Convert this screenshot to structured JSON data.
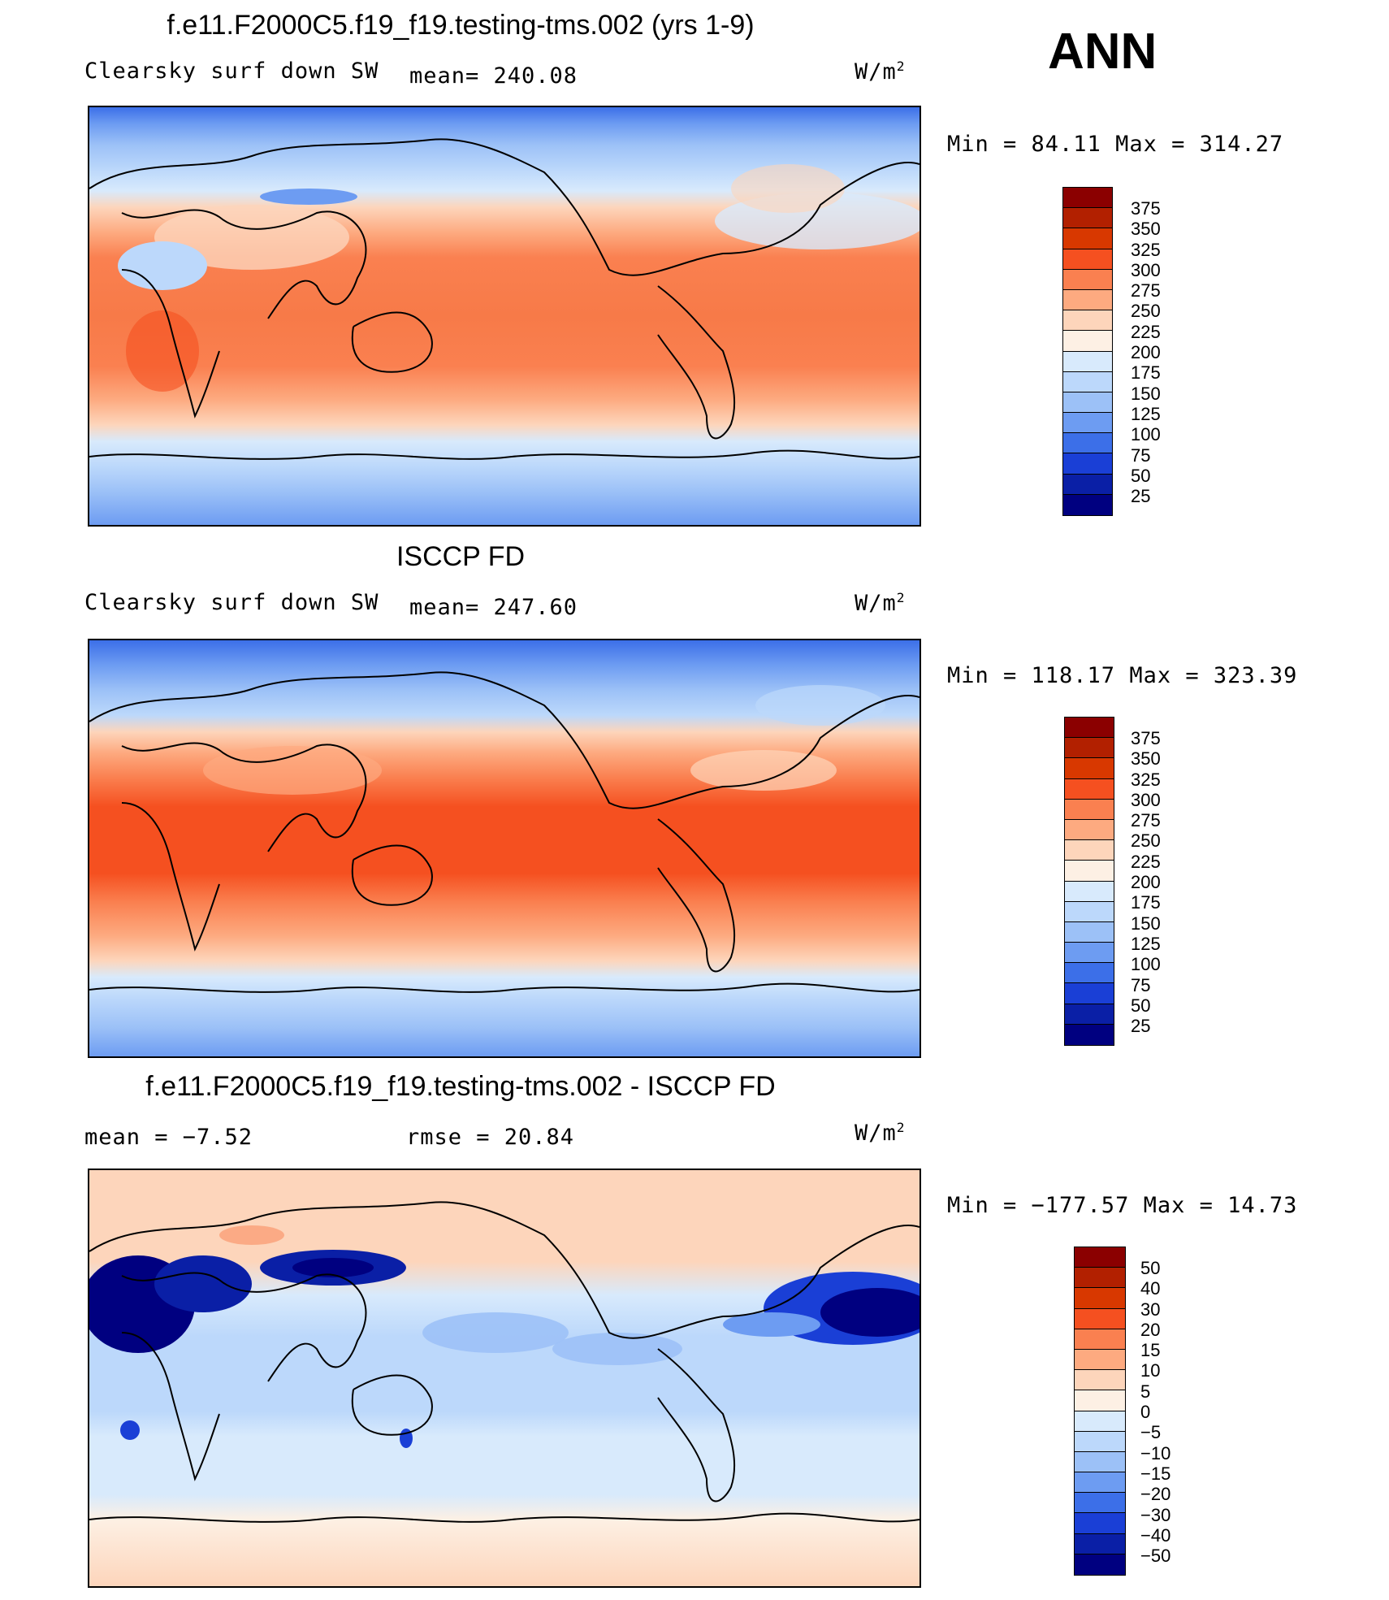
{
  "season": "ANN",
  "chart_data": [
    {
      "type": "heatmap",
      "title": "f.e11.F2000C5.f19_f19.testing-tms.002 (yrs 1-9)",
      "variable": "Clearsky surf down SW",
      "mean_label": "mean= 240.08",
      "units_base": "W/m",
      "units_exp": "2",
      "min_max": "Min =   84.11 Max = 314.27",
      "min": 84.11,
      "max": 314.27,
      "mean": 240.08,
      "colorbar_levels": [
        "375",
        "350",
        "325",
        "300",
        "275",
        "250",
        "225",
        "200",
        "175",
        "150",
        "125",
        "100",
        "75",
        "50",
        "25"
      ],
      "colorbar_colors": [
        "#8b0000",
        "#b22000",
        "#d83800",
        "#f55020",
        "#fa8050",
        "#fdaa80",
        "#fdd5bb",
        "#fdf0e4",
        "#d8eafc",
        "#bcd8fb",
        "#9cc1f7",
        "#6d9cf2",
        "#3c6fe8",
        "#1a3fd6",
        "#0a1fa6",
        "#000080"
      ]
    },
    {
      "type": "heatmap",
      "title": "ISCCP FD",
      "variable": "Clearsky surf down SW",
      "mean_label": "mean= 247.60",
      "units_base": "W/m",
      "units_exp": "2",
      "min_max": "Min = 118.17 Max = 323.39",
      "min": 118.17,
      "max": 323.39,
      "mean": 247.6,
      "colorbar_levels": [
        "375",
        "350",
        "325",
        "300",
        "275",
        "250",
        "225",
        "200",
        "175",
        "150",
        "125",
        "100",
        "75",
        "50",
        "25"
      ],
      "colorbar_colors": [
        "#8b0000",
        "#b22000",
        "#d83800",
        "#f55020",
        "#fa8050",
        "#fdaa80",
        "#fdd5bb",
        "#fdf0e4",
        "#d8eafc",
        "#bcd8fb",
        "#9cc1f7",
        "#6d9cf2",
        "#3c6fe8",
        "#1a3fd6",
        "#0a1fa6",
        "#000080"
      ]
    },
    {
      "type": "heatmap",
      "title": "f.e11.F2000C5.f19_f19.testing-tms.002 - ISCCP FD",
      "mean_label": "mean =   −7.52",
      "rmse_label": "rmse =   20.84",
      "units_base": "W/m",
      "units_exp": "2",
      "min_max": "Min = −177.57 Max =   14.73",
      "min": -177.57,
      "max": 14.73,
      "mean": -7.52,
      "rmse": 20.84,
      "colorbar_levels": [
        "50",
        "40",
        "30",
        "20",
        "15",
        "10",
        "5",
        "0",
        "−5",
        "−10",
        "−15",
        "−20",
        "−30",
        "−40",
        "−50"
      ],
      "colorbar_colors": [
        "#8b0000",
        "#b22000",
        "#d83800",
        "#f55020",
        "#fa8050",
        "#fdaa80",
        "#fdd5bb",
        "#fdf0e4",
        "#d8eafc",
        "#bcd8fb",
        "#9cc1f7",
        "#6d9cf2",
        "#3c6fe8",
        "#1a3fd6",
        "#0a1fa6",
        "#000080"
      ]
    }
  ]
}
